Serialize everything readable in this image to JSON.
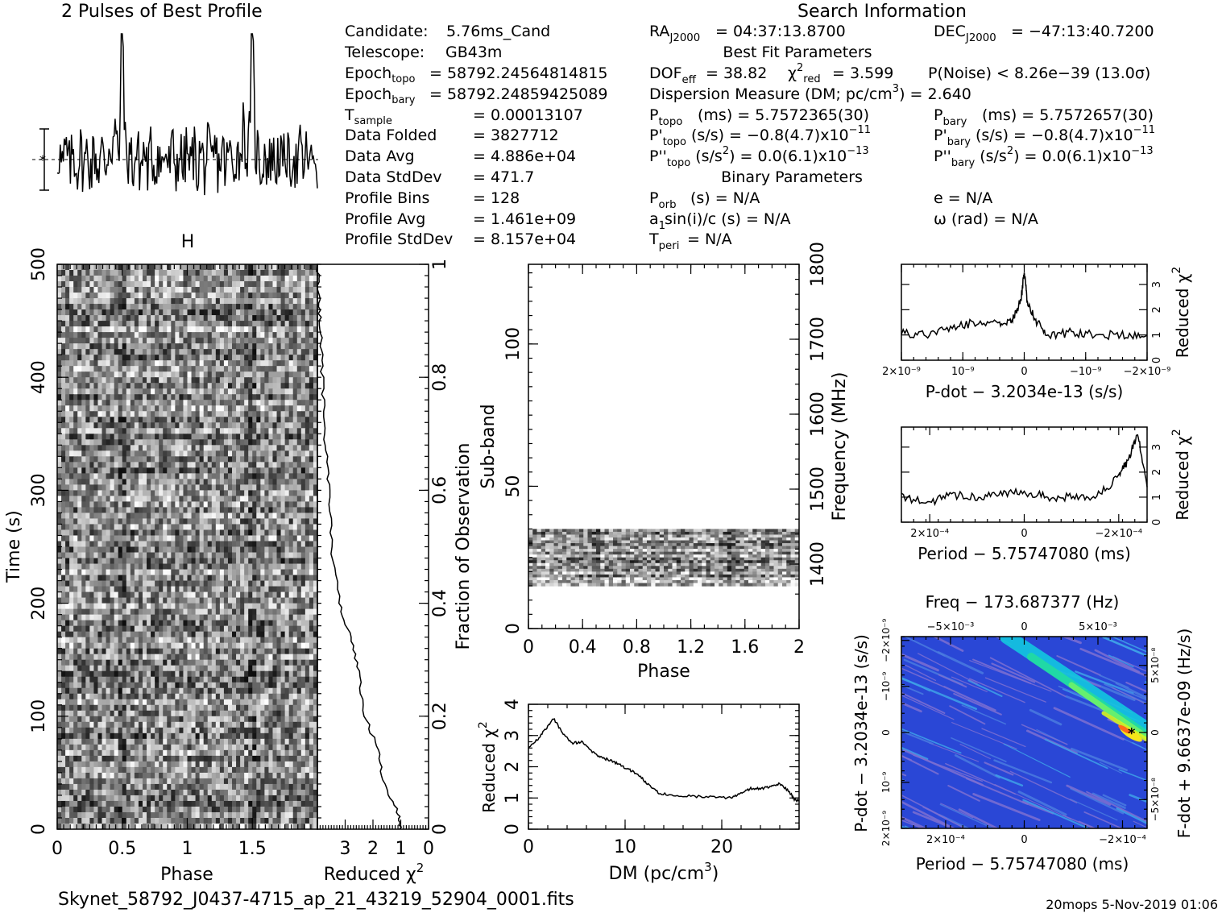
{
  "profile": {
    "title": "2 Pulses of Best Profile"
  },
  "search_info": {
    "title": "Search Information",
    "rows": [
      {
        "label": "Candidate:",
        "value": "5.76ms_Cand"
      },
      {
        "label": "Telescope:",
        "value": "GB43m"
      },
      {
        "label": "Epoch",
        "sub": "topo",
        "value": "= 58792.24564814815"
      },
      {
        "label": "Epoch",
        "sub": "bary",
        "value": "= 58792.24859425089"
      },
      {
        "label": "T",
        "sub": "sample",
        "value": "=    0.00013107"
      },
      {
        "label": "Data Folded",
        "value": "=    3827712"
      },
      {
        "label": "Data Avg",
        "value": "=    4.886e+04"
      },
      {
        "label": "Data StdDev",
        "value": "=    471.7"
      },
      {
        "label": "Profile Bins",
        "value": "=    128"
      },
      {
        "label": "Profile Avg",
        "value": "=    1.461e+09"
      },
      {
        "label": "Profile StdDev",
        "value": "=    8.157e+04"
      }
    ],
    "ra": "= 04:37:13.8700",
    "dec": "= −47:13:40.7200",
    "best_fit_title": "Best Fit Parameters",
    "dof": "= 38.82",
    "chi2": "= 3.599",
    "pnoise": "P(Noise) < 8.26e−39   (13.0σ)",
    "dm_line": "Dispersion Measure (DM; pc/cm",
    "dm_value": ") = 2.640",
    "ptopo": "(ms)  =   5.7572365(30)",
    "pbary": "(ms)  =   5.7572657(30)",
    "pdtopo": "(s/s) = −0.8(4.7)x10",
    "pdtopo_exp": "−11",
    "pdbary": "(s/s) = −0.8(4.7)x10",
    "pdbary_exp": "−11",
    "pddtopo": "(s/s",
    "pddtopo_rest": ") = 0.0(6.1)x10",
    "pddtopo_exp": "−13",
    "pddbary": "(s/s",
    "pddbary_rest": ") = 0.0(6.1)x10",
    "pddbary_exp": "−13",
    "binary_title": "Binary Parameters",
    "porb": "(s) = N/A",
    "e": "e = N/A",
    "a1sini": "sin(i)/c (s) = N/A",
    "omega": "ω (rad) = N/A",
    "tperi": "= N/A"
  },
  "labels": {
    "time_axis": "Time (s)",
    "phase": "Phase",
    "reduced_chi2": "Reduced χ",
    "fraction_obs": "Fraction of Observation",
    "subband": "Sub-band",
    "frequency": "Frequency (MHz)",
    "dm_axis": "DM (pc/cm",
    "pdot_axis": "P-dot − 3.2034e-13 (s/s)",
    "period_axis": "Period − 5.75747080 (ms)",
    "freq_top": "Freq − 173.687377 (Hz)",
    "pdot_left": "P-dot − 3.2034e-13 (s/s)",
    "fdot_right": "F-dot + 9.6637e-09 (Hz/s)"
  },
  "footer": {
    "filename": "Skynet_58792_J0437-4715_ap_21_43219_52904_0001.fits",
    "stamp": "20mops   5-Nov-2019 01:06"
  },
  "chart_data": [
    {
      "type": "line",
      "title": "2 Pulses of Best Profile",
      "x": [
        0.0,
        0.1,
        0.2,
        0.3,
        0.4,
        0.45,
        0.5,
        0.55,
        0.6,
        0.7,
        0.8,
        0.9,
        1.0,
        1.1,
        1.2,
        1.3,
        1.4,
        1.45,
        1.5,
        1.55,
        1.6,
        1.7,
        1.8,
        1.9,
        2.0
      ],
      "values": [
        0.0,
        0.1,
        -0.2,
        0.3,
        0.2,
        0.9,
        3.1,
        1.0,
        -0.1,
        0.2,
        -0.4,
        0.1,
        0.0,
        0.1,
        -0.2,
        0.3,
        0.2,
        0.9,
        3.1,
        1.0,
        -0.1,
        0.2,
        -0.4,
        0.1,
        0.0
      ]
    },
    {
      "type": "heatmap",
      "xlabel": "Phase",
      "ylabel": "Time (s)",
      "x_ticks": [
        "0",
        "0.5",
        "1",
        "1.5"
      ],
      "y_ticks": [
        "0",
        "100",
        "200",
        "300",
        "400",
        "500"
      ],
      "xlim": [
        0,
        2
      ],
      "ylim": [
        0,
        500
      ]
    },
    {
      "type": "line",
      "xlabel": "Reduced χ²",
      "ylabel": "Fraction of Observation",
      "x_ticks": [
        "3",
        "2",
        "1",
        "0"
      ],
      "y_ticks": [
        "0",
        "0.2",
        "0.4",
        "0.6",
        "0.8",
        "1"
      ],
      "x": [
        1.0,
        1.1,
        1.6,
        1.8,
        2.3,
        2.5,
        2.8,
        3.2,
        3.5,
        3.6,
        3.7,
        3.8,
        3.85,
        3.9,
        3.95,
        4.0
      ],
      "y": [
        0.0,
        0.03,
        0.08,
        0.14,
        0.2,
        0.28,
        0.34,
        0.4,
        0.5,
        0.6,
        0.68,
        0.76,
        0.84,
        0.9,
        0.95,
        1.0
      ],
      "xlim": [
        4,
        0
      ],
      "ylim": [
        0,
        1
      ]
    },
    {
      "type": "heatmap",
      "xlabel": "Phase",
      "ylabel": "Sub-band",
      "y2label": "Frequency (MHz)",
      "x_ticks": [
        "0",
        "0.4",
        "0.8",
        "1.2",
        "1.6",
        "2"
      ],
      "y_ticks": [
        "0",
        "50",
        "100"
      ],
      "y2_ticks": [
        "1400",
        "1500",
        "1600",
        "1700",
        "1800"
      ],
      "data_band": [
        15,
        35
      ],
      "xlim": [
        0,
        2
      ],
      "ylim": [
        0,
        128
      ]
    },
    {
      "type": "line",
      "xlabel": "DM (pc/cm³)",
      "ylabel": "Reduced χ²",
      "x_ticks": [
        "0",
        "10",
        "20"
      ],
      "y_ticks": [
        "0",
        "1",
        "2",
        "3",
        "4"
      ],
      "x": [
        0,
        1,
        2,
        2.6,
        3.5,
        4.5,
        5.5,
        6.5,
        7.5,
        8.5,
        9.5,
        10.5,
        11.5,
        12.5,
        13.5,
        15,
        17,
        19,
        21,
        22,
        23,
        24,
        25,
        26,
        27,
        27.5,
        28
      ],
      "y": [
        2.6,
        2.9,
        3.3,
        3.55,
        3.1,
        2.75,
        2.8,
        2.5,
        2.3,
        2.2,
        2.05,
        1.9,
        1.7,
        1.4,
        1.15,
        1.1,
        1.05,
        1.05,
        1.0,
        1.15,
        1.3,
        1.3,
        1.35,
        1.45,
        1.2,
        0.95,
        0.9
      ],
      "xlim": [
        0,
        28
      ],
      "ylim": [
        0,
        4
      ]
    },
    {
      "type": "line",
      "xlabel": "P-dot − 3.2034e-13 (s/s)",
      "ylabel": "Reduced χ²",
      "x_ticks": [
        "2×10⁻⁹",
        "10⁻⁹",
        "0",
        "−10⁻⁹",
        "−2×10⁻⁹"
      ],
      "y_ticks": [
        "0",
        "1",
        "2",
        "3"
      ],
      "x": [
        2.0,
        1.6,
        1.2,
        0.8,
        0.4,
        0.2,
        0.05,
        0.0,
        -0.05,
        -0.2,
        -0.4,
        -0.8,
        -1.2,
        -1.6,
        -2.0
      ],
      "y": [
        1.1,
        1.0,
        1.3,
        1.5,
        1.4,
        1.6,
        2.4,
        3.5,
        2.3,
        1.5,
        1.0,
        1.1,
        1.0,
        1.0,
        1.0
      ],
      "ylim": [
        0,
        3.8
      ]
    },
    {
      "type": "line",
      "xlabel": "Period − 5.75747080 (ms)",
      "ylabel": "Reduced χ²",
      "x_ticks": [
        "2×10⁻⁴",
        "0",
        "−2×10⁻⁴"
      ],
      "y_ticks": [
        "0",
        "1",
        "2",
        "3"
      ],
      "x": [
        2.6,
        2.0,
        1.5,
        1.0,
        0.5,
        0.0,
        -0.5,
        -1.0,
        -1.5,
        -2.0,
        -2.2,
        -2.4,
        -2.6
      ],
      "y": [
        1.0,
        0.8,
        1.1,
        1.0,
        1.1,
        1.2,
        1.0,
        1.0,
        1.0,
        1.8,
        2.5,
        3.5,
        1.4
      ],
      "ylim": [
        0,
        3.8
      ]
    },
    {
      "type": "heatmap",
      "xlabel": "Period − 5.75747080 (ms)",
      "ylabel": "P-dot − 3.2034e-13 (s/s)",
      "x2label": "Freq − 173.687377 (Hz)",
      "y2label": "F-dot + 9.6637e-09 (Hz/s)",
      "x_ticks": [
        "2×10⁻⁴",
        "0",
        "−2×10⁻⁴"
      ],
      "x2_ticks": [
        "−5×10⁻³",
        "0",
        "5×10⁻³"
      ],
      "y_ticks": [
        "2×10⁻⁹",
        "10⁻⁹",
        "0",
        "−10⁻⁹",
        "−2×10⁻⁹"
      ],
      "y2_ticks": [
        "−5×10⁻⁸",
        "0",
        "5×10⁻⁸"
      ]
    }
  ]
}
